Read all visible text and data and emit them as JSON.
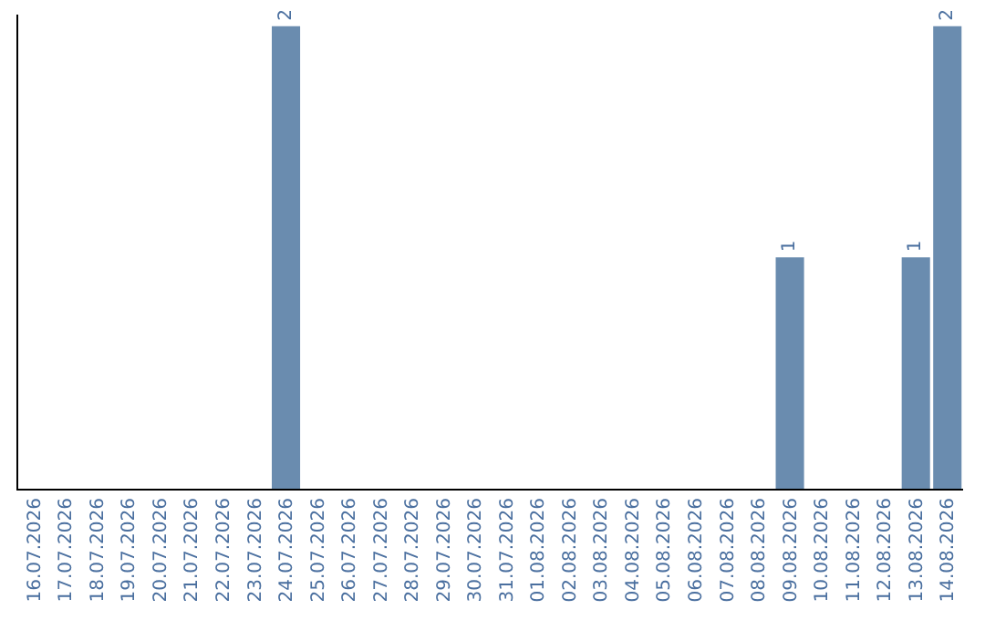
{
  "chart_data": {
    "type": "bar",
    "categories": [
      "16.07.2026",
      "17.07.2026",
      "18.07.2026",
      "19.07.2026",
      "20.07.2026",
      "21.07.2026",
      "22.07.2026",
      "23.07.2026",
      "24.07.2026",
      "25.07.2026",
      "26.07.2026",
      "27.07.2026",
      "28.07.2026",
      "29.07.2026",
      "30.07.2026",
      "31.07.2026",
      "01.08.2026",
      "02.08.2026",
      "03.08.2026",
      "04.08.2026",
      "05.08.2026",
      "06.08.2026",
      "07.08.2026",
      "08.08.2026",
      "09.08.2026",
      "10.08.2026",
      "11.08.2026",
      "12.08.2026",
      "13.08.2026",
      "14.08.2026"
    ],
    "values": [
      0,
      0,
      0,
      0,
      0,
      0,
      0,
      0,
      2,
      0,
      0,
      0,
      0,
      0,
      0,
      0,
      0,
      0,
      0,
      0,
      0,
      0,
      0,
      0,
      1,
      0,
      0,
      0,
      1,
      2
    ],
    "value_labels": [
      null,
      null,
      null,
      null,
      null,
      null,
      null,
      null,
      "2",
      null,
      null,
      null,
      null,
      null,
      null,
      null,
      null,
      null,
      null,
      null,
      null,
      null,
      null,
      null,
      "1",
      null,
      null,
      null,
      "1",
      "2"
    ],
    "color": "#6a8caf",
    "ylim": [
      0,
      2.05
    ],
    "tick_labels": "x",
    "grid": false
  }
}
